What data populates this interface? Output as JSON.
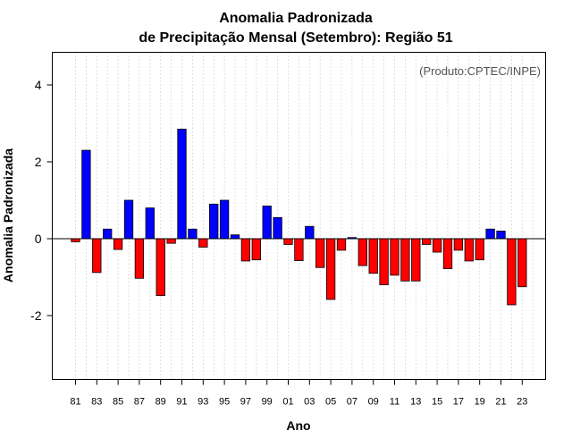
{
  "chart_data": {
    "type": "bar",
    "title_lines": [
      "Anomalia Padronizada",
      "de Precipitação Mensal (Setembro): Região 51"
    ],
    "xlabel": "Ano",
    "ylabel": "Anomalia Padronizada",
    "credit": "(Produto:CPTEC/INPE)",
    "ylim": [
      -3.7,
      4.85
    ],
    "yticks": [
      -2,
      0,
      2,
      4
    ],
    "yticklabels": [
      "-2",
      "0",
      "2",
      "4"
    ],
    "grid": "vertical dotted",
    "positive_color": "#0000ff",
    "negative_color": "#ff0000",
    "categories": [
      "81",
      "82",
      "83",
      "84",
      "85",
      "86",
      "87",
      "88",
      "89",
      "90",
      "91",
      "92",
      "93",
      "94",
      "95",
      "96",
      "97",
      "98",
      "99",
      "00",
      "01",
      "02",
      "03",
      "04",
      "05",
      "06",
      "07",
      "08",
      "09",
      "10",
      "11",
      "12",
      "13",
      "14",
      "15",
      "16",
      "17",
      "18",
      "19",
      "20",
      "21",
      "22",
      "23",
      "24"
    ],
    "xticklabels": [
      "81",
      "83",
      "85",
      "87",
      "89",
      "91",
      "93",
      "95",
      "97",
      "99",
      "01",
      "03",
      "05",
      "07",
      "09",
      "11",
      "13",
      "15",
      "17",
      "19",
      "21",
      "23"
    ],
    "values": [
      -0.08,
      2.3,
      -0.88,
      0.25,
      -0.28,
      1.0,
      -1.03,
      0.8,
      -1.48,
      -0.12,
      2.85,
      0.25,
      -0.22,
      0.9,
      1.0,
      0.1,
      -0.58,
      -0.55,
      0.85,
      0.55,
      -0.15,
      -0.57,
      0.32,
      -0.75,
      -1.58,
      -0.3,
      0.03,
      -0.7,
      -0.9,
      -1.2,
      -0.95,
      -1.1,
      -1.1,
      -0.15,
      -0.35,
      -0.78,
      -0.3,
      -0.58,
      -0.55,
      0.25,
      0.2,
      -1.72,
      -1.25,
      null
    ]
  }
}
